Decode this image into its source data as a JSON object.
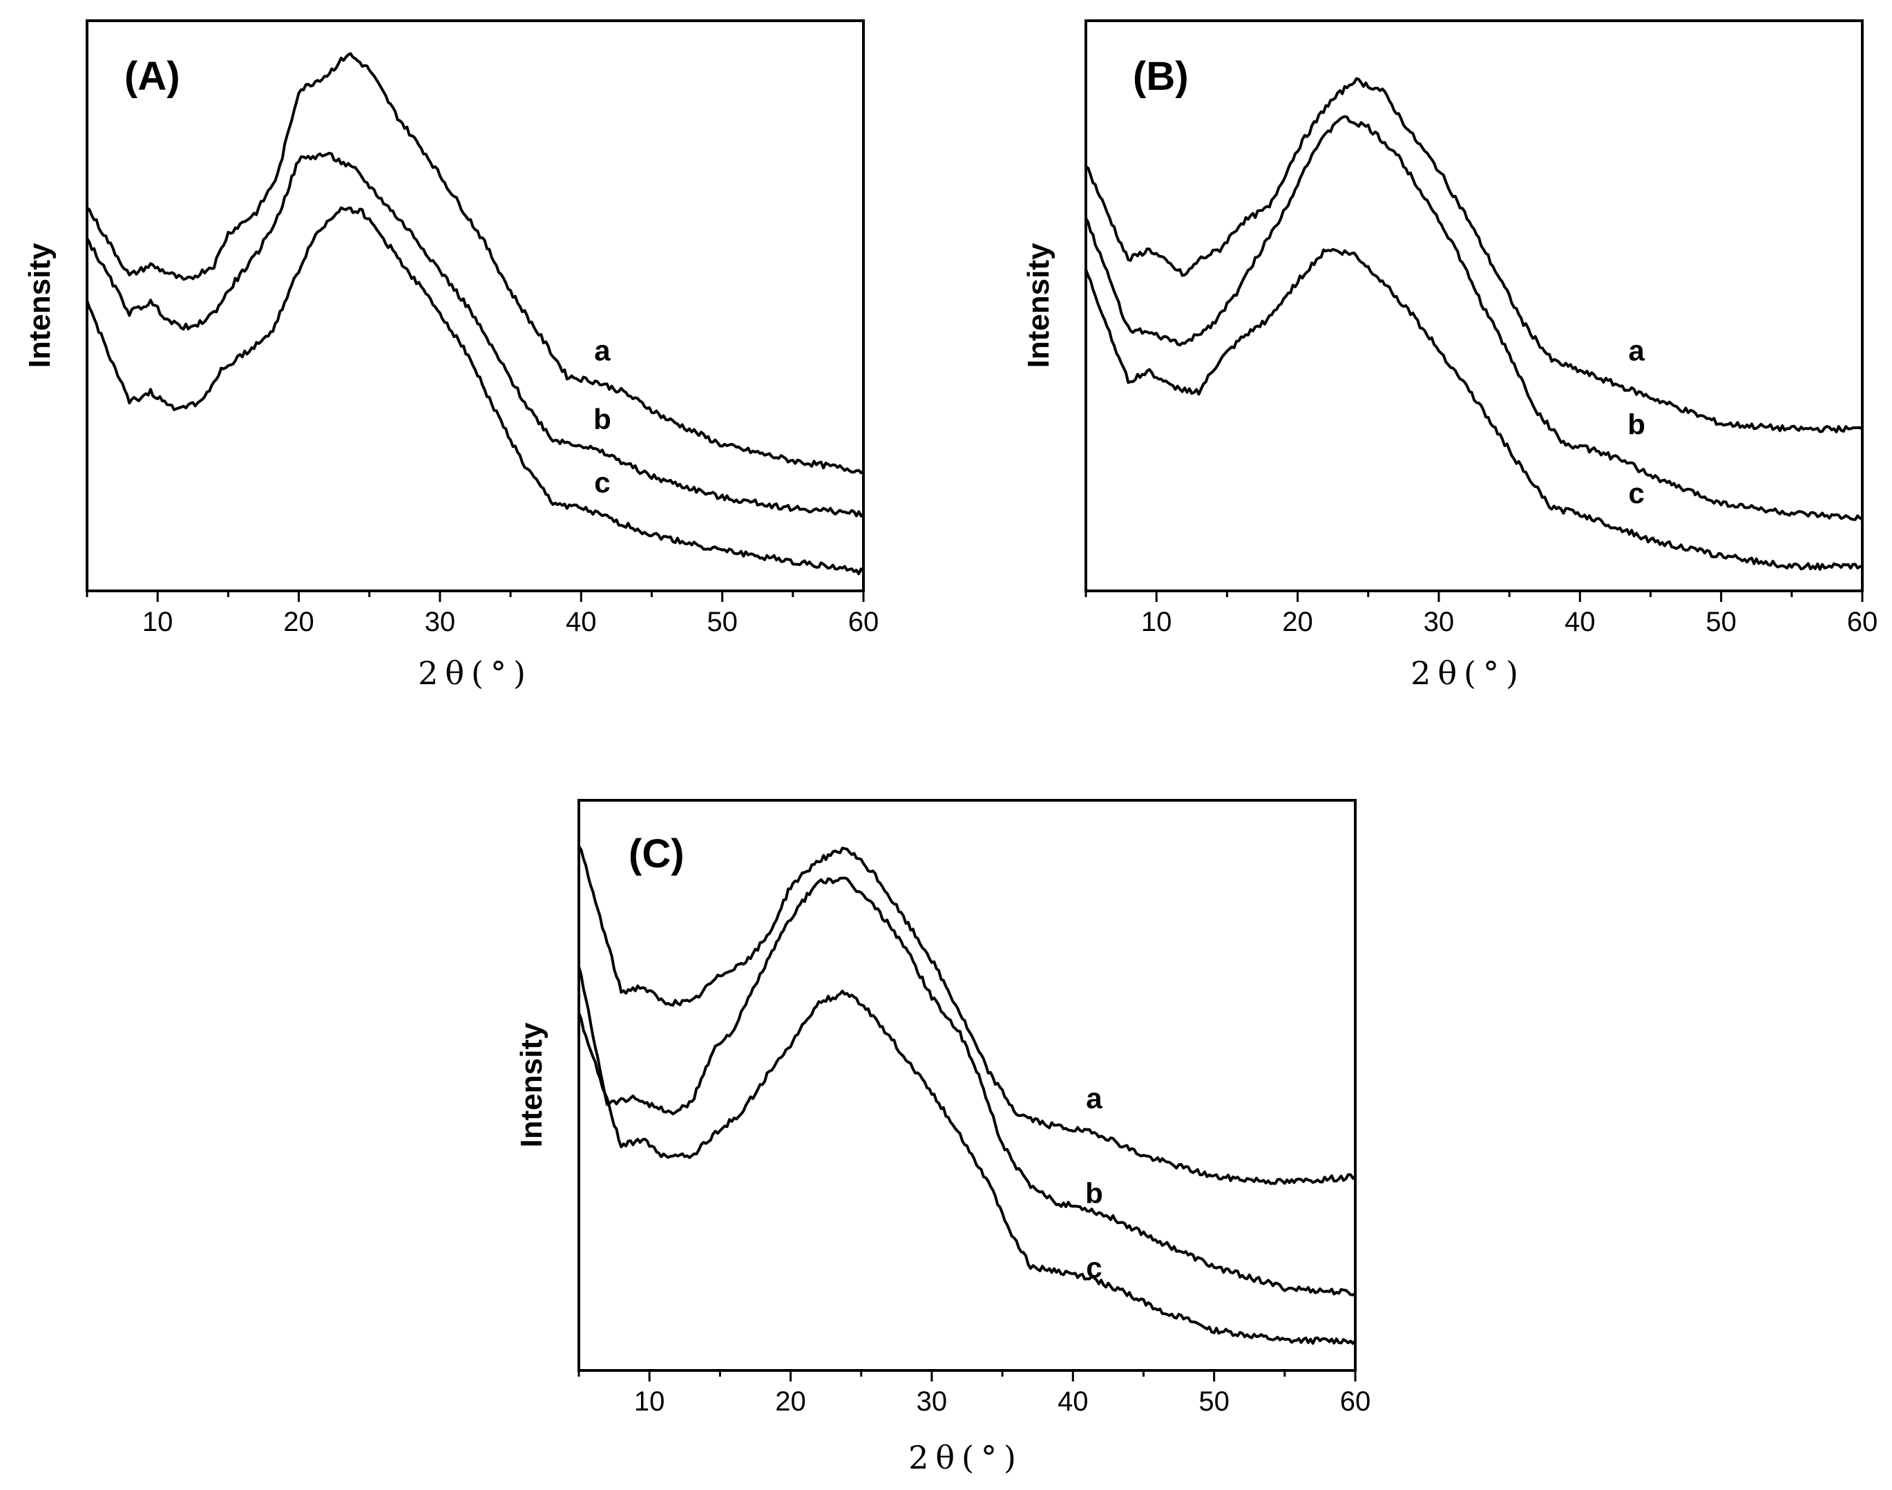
{
  "figure": {
    "background": "#ffffff",
    "line_color": "#000000"
  },
  "chart_data": [
    {
      "type": "line",
      "title": "(A)",
      "xlabel": "2θ(°)",
      "ylabel": "Intensity",
      "xlim": [
        5,
        60
      ],
      "ylim": [
        0,
        100
      ],
      "xticks": [
        10,
        20,
        30,
        40,
        50,
        60
      ],
      "grid": false,
      "legend": "inline labels",
      "series": [
        {
          "name": "a",
          "label_x": 41.5,
          "label_y": 41,
          "x": [
            5,
            8,
            9.5,
            12,
            14,
            15,
            17,
            18.5,
            20,
            22,
            23.5,
            25,
            27,
            29,
            31,
            33,
            35,
            37,
            39,
            41,
            43,
            46,
            50,
            55,
            60
          ],
          "y": [
            70,
            57,
            59,
            56,
            59,
            65,
            69,
            76,
            92,
            95,
            99,
            96,
            87,
            80,
            72,
            64,
            54,
            46,
            38,
            37,
            35,
            30,
            25,
            22,
            20
          ]
        },
        {
          "name": "b",
          "label_x": 41.5,
          "label_y": 28,
          "x": [
            5,
            8,
            9.5,
            11,
            12.5,
            14,
            15.5,
            17,
            18.5,
            20,
            22,
            24,
            26,
            28,
            30,
            32,
            34,
            36,
            38,
            40,
            42,
            45,
            50,
            55,
            60
          ],
          "y": [
            64,
            50,
            52,
            48,
            47,
            50,
            56,
            61,
            68,
            79,
            80,
            77,
            71,
            65,
            58,
            51,
            42,
            33,
            26,
            25,
            23,
            19,
            15,
            13,
            12
          ]
        },
        {
          "name": "c",
          "label_x": 41.5,
          "label_y": 16,
          "x": [
            5,
            8,
            9.5,
            11,
            13,
            14.5,
            16,
            18,
            19.5,
            21,
            23,
            24.5,
            26,
            28,
            30,
            32,
            34,
            36,
            38,
            40,
            42,
            45,
            50,
            55,
            60
          ],
          "y": [
            52,
            33,
            35,
            32,
            33,
            39,
            42,
            46,
            55,
            64,
            70,
            69,
            64,
            57,
            50,
            42,
            31,
            21,
            14,
            13,
            11,
            8,
            5,
            3,
            1
          ]
        }
      ]
    },
    {
      "type": "line",
      "title": "(B)",
      "xlabel": "2θ(°)",
      "ylabel": "Intensity",
      "xlim": [
        5,
        60
      ],
      "ylim": [
        0,
        100
      ],
      "xticks": [
        10,
        20,
        30,
        40,
        50,
        60
      ],
      "grid": false,
      "legend": "inline labels",
      "series": [
        {
          "name": "a",
          "label_x": 44,
          "label_y": 41,
          "x": [
            5,
            8,
            9.5,
            12,
            13,
            14.5,
            16,
            18,
            20,
            22,
            24,
            26,
            28,
            30,
            32,
            34,
            36,
            38,
            40,
            42,
            45,
            50,
            55,
            60
          ],
          "y": [
            78,
            60,
            62,
            57,
            60,
            62,
            67,
            70,
            81,
            89,
            94,
            92,
            84,
            77,
            68,
            58,
            48,
            41,
            39,
            37,
            34,
            29,
            28,
            28
          ]
        },
        {
          "name": "b",
          "label_x": 44,
          "label_y": 27,
          "x": [
            5,
            8,
            9.5,
            12,
            14,
            15.5,
            17,
            19,
            21,
            23,
            25,
            27,
            29,
            31,
            33,
            35,
            37,
            39,
            41,
            43,
            46,
            50,
            55,
            60
          ],
          "y": [
            68,
            47,
            46,
            44,
            48,
            53,
            60,
            69,
            80,
            87,
            85,
            80,
            72,
            63,
            52,
            42,
            31,
            25,
            24,
            22,
            18,
            14,
            12,
            11
          ]
        },
        {
          "name": "c",
          "label_x": 44,
          "label_y": 14,
          "x": [
            5,
            8,
            9.5,
            11,
            13,
            14.5,
            16,
            18,
            20,
            22,
            24,
            26,
            28,
            30,
            32,
            34,
            36,
            38,
            40,
            42,
            45,
            50,
            55,
            60
          ],
          "y": [
            58,
            37,
            39,
            36,
            35,
            41,
            45,
            49,
            56,
            62,
            61,
            56,
            50,
            43,
            36,
            28,
            20,
            13,
            12,
            10,
            7,
            4,
            2,
            2
          ]
        }
      ]
    },
    {
      "type": "line",
      "title": "(C)",
      "xlabel": "2θ(°)",
      "ylabel": "Intensity",
      "xlim": [
        5,
        60
      ],
      "ylim": [
        0,
        100
      ],
      "xticks": [
        10,
        20,
        30,
        40,
        50,
        60
      ],
      "grid": false,
      "legend": "inline labels",
      "series": [
        {
          "name": "a",
          "label_x": 41.5,
          "label_y": 47,
          "x": [
            5,
            8,
            9.5,
            11,
            13,
            14.5,
            15.5,
            17,
            18.5,
            20,
            22,
            24,
            26,
            28,
            30,
            32,
            34,
            36,
            38,
            40,
            42,
            45,
            50,
            55,
            60
          ],
          "y": [
            97,
            69,
            70,
            67,
            67,
            71,
            73,
            75,
            80,
            89,
            94,
            96,
            91,
            83,
            75,
            65,
            54,
            46,
            44,
            43,
            42,
            38,
            34,
            33,
            34
          ]
        },
        {
          "name": "b",
          "label_x": 41.5,
          "label_y": 29,
          "x": [
            5,
            7,
            9,
            11.5,
            13,
            14.5,
            16,
            18,
            20,
            22,
            24,
            26,
            28,
            30,
            32,
            33.5,
            35,
            37,
            39,
            41,
            43,
            46,
            50,
            55,
            60
          ],
          "y": [
            74,
            48,
            49,
            46,
            48,
            58,
            62,
            73,
            83,
            90,
            90,
            85,
            78,
            68,
            61,
            52,
            40,
            32,
            29,
            28,
            26,
            22,
            17,
            13,
            12
          ]
        },
        {
          "name": "c",
          "label_x": 41.5,
          "label_y": 15,
          "x": [
            5,
            8,
            9.5,
            11,
            13,
            15,
            16.5,
            18,
            20,
            22,
            24,
            26,
            28,
            30,
            32,
            34,
            35.5,
            37,
            39,
            41,
            43,
            46,
            50,
            55,
            60
          ],
          "y": [
            65,
            40,
            41,
            38,
            38,
            43,
            46,
            52,
            59,
            67,
            69,
            64,
            57,
            50,
            42,
            33,
            24,
            17,
            16,
            15,
            13,
            9,
            5,
            3,
            3
          ]
        }
      ]
    }
  ]
}
